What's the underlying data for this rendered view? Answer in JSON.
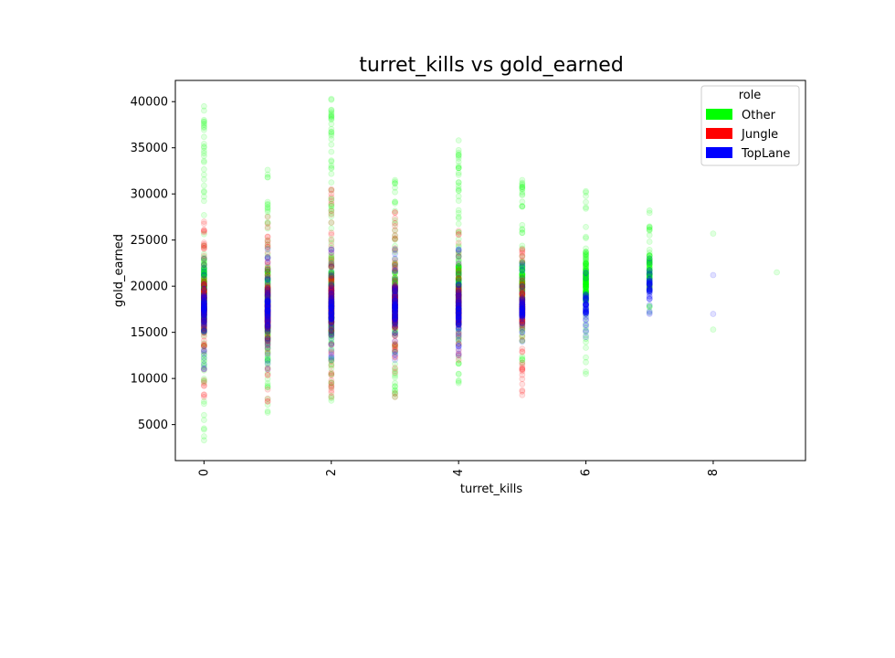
{
  "chart_data": {
    "type": "scatter",
    "title": "turret_kills vs gold_earned",
    "xlabel": "turret_kills",
    "ylabel": "gold_earned",
    "xlim": [
      -0.45,
      9.45
    ],
    "ylim": [
      1100,
      42300
    ],
    "x_ticks": [
      0,
      2,
      4,
      6,
      8
    ],
    "y_ticks": [
      5000,
      10000,
      15000,
      20000,
      25000,
      30000,
      35000,
      40000
    ],
    "grid": false,
    "legend": {
      "title": "role",
      "placement": "upper-right"
    },
    "point_alpha": 0.12,
    "series": [
      {
        "name": "Other",
        "color": "#00ff00",
        "stripes": [
          {
            "x": 0,
            "ymin": 3300,
            "ymax": 39500,
            "core": [
              12500,
              25500
            ]
          },
          {
            "x": 1,
            "ymin": 6300,
            "ymax": 32600,
            "core": [
              8500,
              26500
            ]
          },
          {
            "x": 2,
            "ymin": 7600,
            "ymax": 40300,
            "core": [
              11000,
              25000
            ]
          },
          {
            "x": 3,
            "ymin": 8000,
            "ymax": 31500,
            "core": [
              12500,
              24500
            ]
          },
          {
            "x": 4,
            "ymin": 9500,
            "ymax": 35800,
            "core": [
              13500,
              26000
            ]
          },
          {
            "x": 5,
            "ymin": 11700,
            "ymax": 31500,
            "core": [
              14500,
              25000
            ]
          },
          {
            "x": 6,
            "ymin": 10500,
            "ymax": 30300,
            "core": [
              15500,
              26000
            ]
          },
          {
            "x": 7,
            "ymin": 17200,
            "ymax": 28200,
            "core": [
              18500,
              25000
            ]
          }
        ],
        "points": [
          {
            "x": 8,
            "y": 25700
          },
          {
            "x": 8,
            "y": 15300
          },
          {
            "x": 9,
            "y": 21500
          }
        ]
      },
      {
        "name": "Jungle",
        "color": "#ff0000",
        "stripes": [
          {
            "x": 0,
            "ymin": 8000,
            "ymax": 27000,
            "core": [
              13500,
              22500
            ]
          },
          {
            "x": 1,
            "ymin": 7500,
            "ymax": 27500,
            "core": [
              12000,
              22000
            ]
          },
          {
            "x": 2,
            "ymin": 8000,
            "ymax": 30500,
            "core": [
              13500,
              23000
            ]
          },
          {
            "x": 3,
            "ymin": 8000,
            "ymax": 28000,
            "core": [
              13500,
              22000
            ]
          },
          {
            "x": 4,
            "ymin": 12000,
            "ymax": 26000,
            "core": [
              14000,
              22000
            ]
          },
          {
            "x": 5,
            "ymin": 8200,
            "ymax": 24000,
            "core": [
              15000,
              21000
            ]
          }
        ],
        "points": [
          {
            "x": 7,
            "y": 20000
          }
        ]
      },
      {
        "name": "TopLane",
        "color": "#0000ff",
        "stripes": [
          {
            "x": 0,
            "ymin": 11000,
            "ymax": 23000,
            "core": [
              14000,
              21000
            ]
          },
          {
            "x": 1,
            "ymin": 11000,
            "ymax": 24000,
            "core": [
              13500,
              21000
            ]
          },
          {
            "x": 2,
            "ymin": 12000,
            "ymax": 24000,
            "core": [
              13500,
              21500
            ]
          },
          {
            "x": 3,
            "ymin": 12000,
            "ymax": 24000,
            "core": [
              14000,
              21000
            ]
          },
          {
            "x": 4,
            "ymin": 12500,
            "ymax": 24000,
            "core": [
              13500,
              21000
            ]
          },
          {
            "x": 5,
            "ymin": 14000,
            "ymax": 22500,
            "core": [
              15000,
              20500
            ]
          },
          {
            "x": 6,
            "ymin": 14500,
            "ymax": 21500,
            "core": [
              15500,
              20500
            ]
          },
          {
            "x": 7,
            "ymin": 17000,
            "ymax": 23000,
            "core": [
              17500,
              22500
            ]
          }
        ],
        "points": [
          {
            "x": 8,
            "y": 21200
          },
          {
            "x": 8,
            "y": 17000
          }
        ]
      }
    ]
  }
}
